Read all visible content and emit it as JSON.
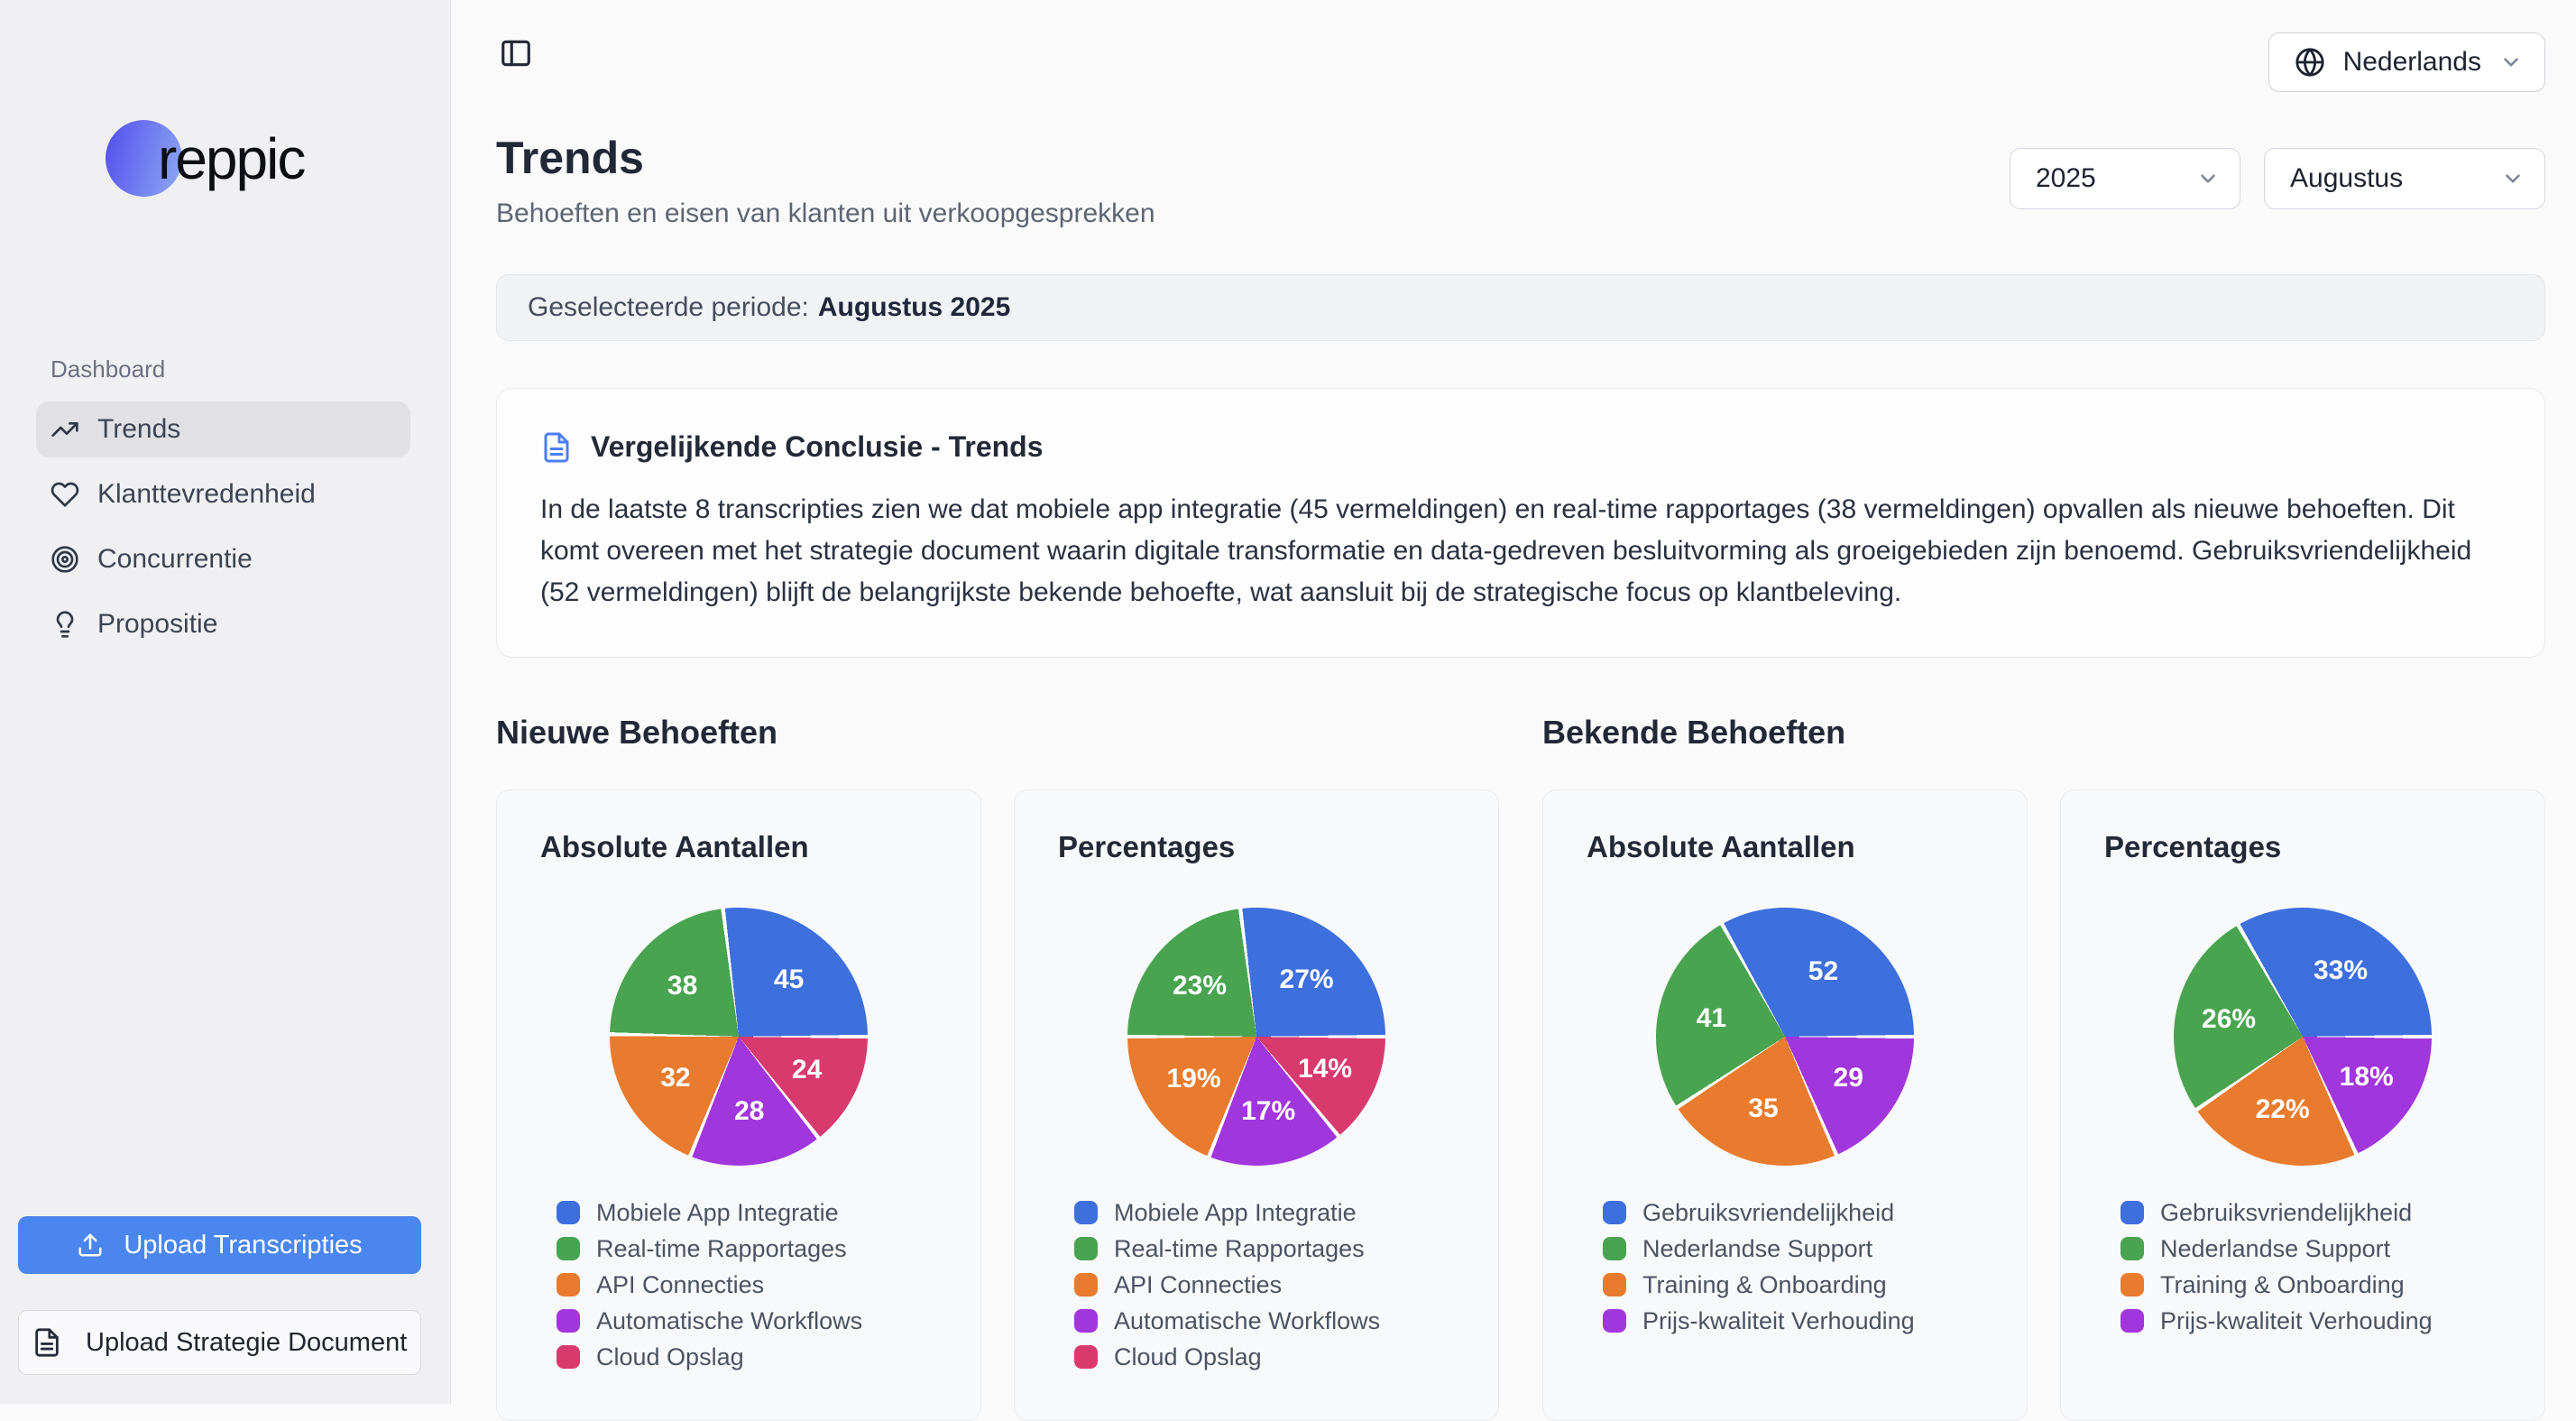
{
  "app": {
    "brand": "reppic"
  },
  "sidebar": {
    "section_label": "Dashboard",
    "items": [
      {
        "label": "Trends",
        "icon": "trending-up",
        "active": true
      },
      {
        "label": "Klanttevredenheid",
        "icon": "heart",
        "active": false
      },
      {
        "label": "Concurrentie",
        "icon": "target",
        "active": false
      },
      {
        "label": "Propositie",
        "icon": "lightbulb",
        "active": false
      }
    ],
    "upload_transcripts_label": "Upload Transcripties",
    "upload_strategy_label": "Upload Strategie Document"
  },
  "topbar": {
    "language": "Nederlands"
  },
  "header": {
    "title": "Trends",
    "subtitle": "Behoeften en eisen van klanten uit verkoopgesprekken",
    "year": "2025",
    "month": "Augustus"
  },
  "period_banner": {
    "label": "Geselecteerde periode:",
    "value": "Augustus 2025"
  },
  "conclusion": {
    "title": "Vergelijkende Conclusie - Trends",
    "body": "In de laatste 8 transcripties zien we dat mobiele app integratie (45 vermeldingen) en real-time rapportages (38 vermeldingen) opvallen als nieuwe behoeften. Dit komt overeen met het strategie document waarin digitale transformatie en data-gedreven besluitvorming als groeigebieden zijn benoemd. Gebruiksvriendelijkheid (52 vermeldingen) blijft de belangrijkste bekende behoefte, wat aansluit bij de strategische focus op klantbeleving."
  },
  "colors": {
    "blue": "#3d6fdd",
    "green": "#49a44f",
    "orange": "#e87b2d",
    "purple": "#a136dd",
    "pink": "#d93a6e",
    "accent_button": "#4b86ee"
  },
  "sections": [
    {
      "title": "Nieuwe Behoeften",
      "cards": [
        {
          "title": "Absolute Aantallen",
          "chart": 0
        },
        {
          "title": "Percentages",
          "chart": 1
        }
      ]
    },
    {
      "title": "Bekende Behoeften",
      "cards": [
        {
          "title": "Absolute Aantallen",
          "chart": 2
        },
        {
          "title": "Percentages",
          "chart": 3
        }
      ]
    }
  ],
  "chart_data": [
    {
      "type": "pie",
      "title": "Nieuwe Behoeften - Absolute Aantallen",
      "legend_position": "bottom-left",
      "slices": [
        {
          "label": "Mobiele App Integratie",
          "value": 45,
          "text": "45",
          "color": "#3d6fdd"
        },
        {
          "label": "Real-time Rapportages",
          "value": 38,
          "text": "38",
          "color": "#49a44f"
        },
        {
          "label": "API Connecties",
          "value": 32,
          "text": "32",
          "color": "#e87b2d"
        },
        {
          "label": "Automatische Workflows",
          "value": 28,
          "text": "28",
          "color": "#a136dd"
        },
        {
          "label": "Cloud Opslag",
          "value": 24,
          "text": "24",
          "color": "#d93a6e"
        }
      ]
    },
    {
      "type": "pie",
      "title": "Nieuwe Behoeften - Percentages",
      "legend_position": "bottom-left",
      "slices": [
        {
          "label": "Mobiele App Integratie",
          "value": 27,
          "text": "27%",
          "color": "#3d6fdd"
        },
        {
          "label": "Real-time Rapportages",
          "value": 23,
          "text": "23%",
          "color": "#49a44f"
        },
        {
          "label": "API Connecties",
          "value": 19,
          "text": "19%",
          "color": "#e87b2d"
        },
        {
          "label": "Automatische Workflows",
          "value": 17,
          "text": "17%",
          "color": "#a136dd"
        },
        {
          "label": "Cloud Opslag",
          "value": 14,
          "text": "14%",
          "color": "#d93a6e"
        }
      ]
    },
    {
      "type": "pie",
      "title": "Bekende Behoeften - Absolute Aantallen",
      "legend_position": "bottom-left",
      "slices": [
        {
          "label": "Gebruiksvriendelijkheid",
          "value": 52,
          "text": "52",
          "color": "#3d6fdd"
        },
        {
          "label": "Nederlandse Support",
          "value": 41,
          "text": "41",
          "color": "#49a44f"
        },
        {
          "label": "Training & Onboarding",
          "value": 35,
          "text": "35",
          "color": "#e87b2d"
        },
        {
          "label": "Prijs-kwaliteit Verhouding",
          "value": 29,
          "text": "29",
          "color": "#a136dd"
        }
      ]
    },
    {
      "type": "pie",
      "title": "Bekende Behoeften - Percentages",
      "legend_position": "bottom-left",
      "slices": [
        {
          "label": "Gebruiksvriendelijkheid",
          "value": 33,
          "text": "33%",
          "color": "#3d6fdd"
        },
        {
          "label": "Nederlandse Support",
          "value": 26,
          "text": "26%",
          "color": "#49a44f"
        },
        {
          "label": "Training & Onboarding",
          "value": 22,
          "text": "22%",
          "color": "#e87b2d"
        },
        {
          "label": "Prijs-kwaliteit Verhouding",
          "value": 18,
          "text": "18%",
          "color": "#a136dd"
        }
      ]
    }
  ]
}
